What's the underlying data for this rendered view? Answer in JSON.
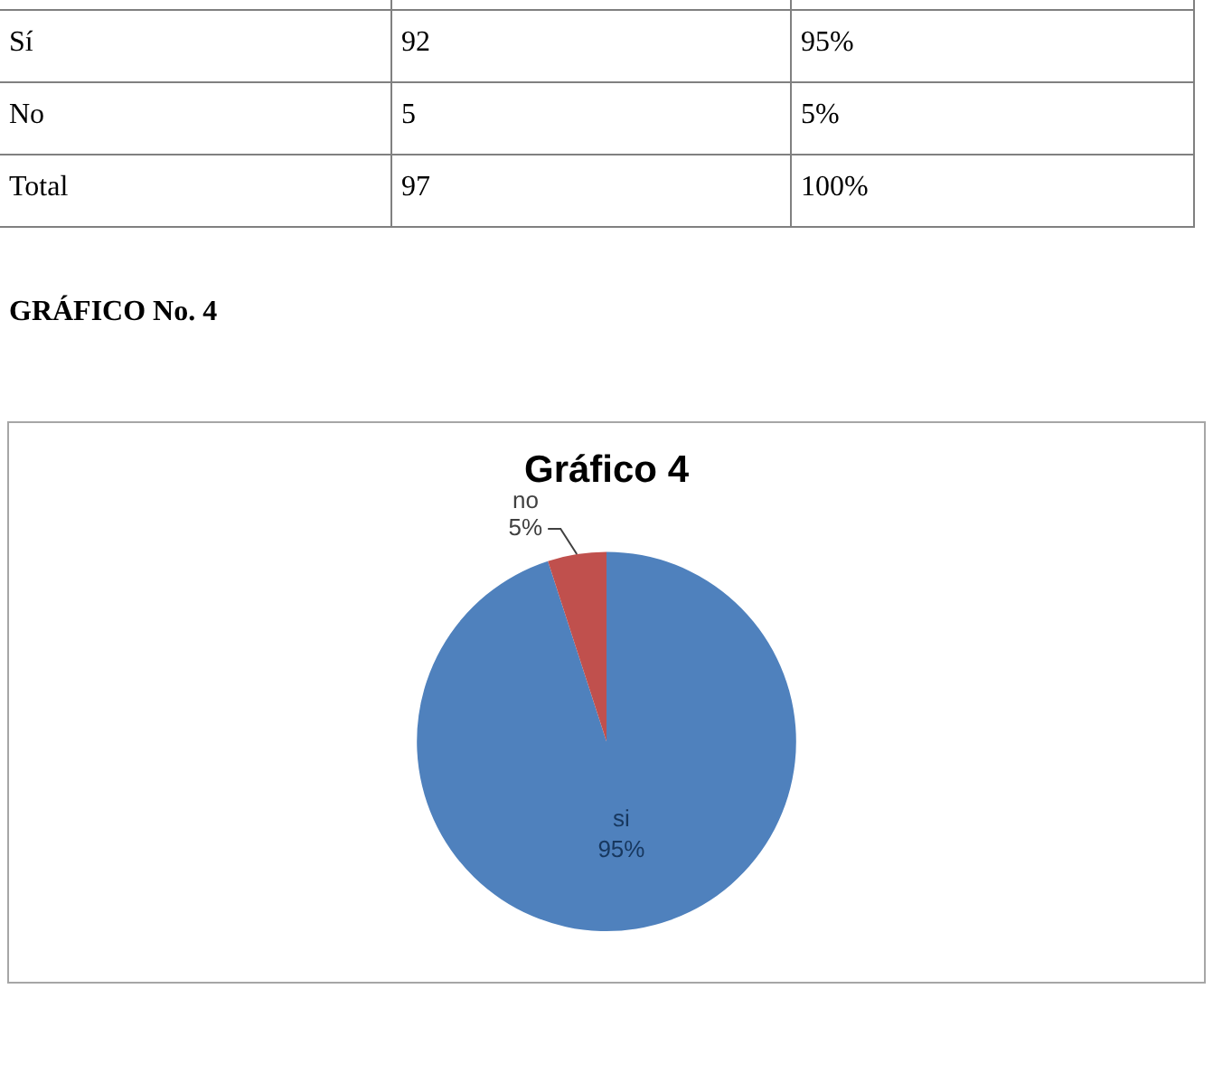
{
  "chart_data": [
    {
      "type": "other",
      "annotations": [
        "Sí",
        "92",
        "95%",
        "No",
        "5",
        "5%",
        "Total",
        "97",
        "100%"
      ]
    },
    {
      "type": "pie",
      "title": "Gráfico 4",
      "annotations": [
        "GRÁFICO No. 4"
      ],
      "categories": [
        "si",
        "no"
      ],
      "values": [
        95,
        5
      ],
      "colors": [
        "#4f81bd",
        "#c0504d"
      ],
      "value_labels": [
        "95%",
        "5%"
      ]
    }
  ]
}
